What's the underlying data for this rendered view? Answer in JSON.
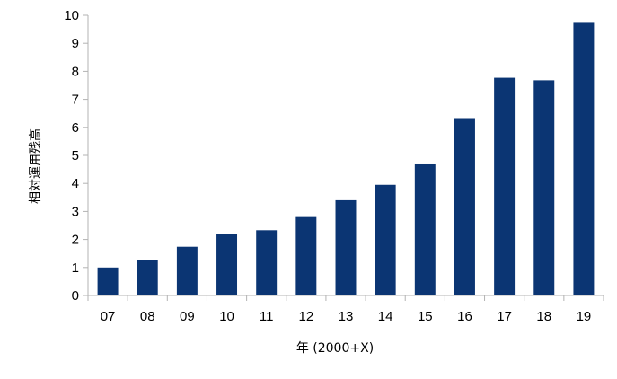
{
  "chart_data": {
    "type": "bar",
    "title": "",
    "xlabel": "年 (2000+X)",
    "ylabel": "相対運用残高",
    "categories": [
      "07",
      "08",
      "09",
      "10",
      "11",
      "12",
      "13",
      "14",
      "15",
      "16",
      "17",
      "18",
      "19"
    ],
    "values": [
      1.0,
      1.27,
      1.74,
      2.2,
      2.33,
      2.8,
      3.4,
      3.95,
      4.68,
      6.33,
      7.77,
      7.68,
      9.73
    ],
    "ylim": [
      0,
      10
    ],
    "yticks": [
      "0",
      "1",
      "2",
      "3",
      "4",
      "5",
      "6",
      "7",
      "8",
      "9",
      "10"
    ],
    "grid": false,
    "legend": "none",
    "bar_color": "#0b3573",
    "axis_color": "#b3b3b3"
  }
}
